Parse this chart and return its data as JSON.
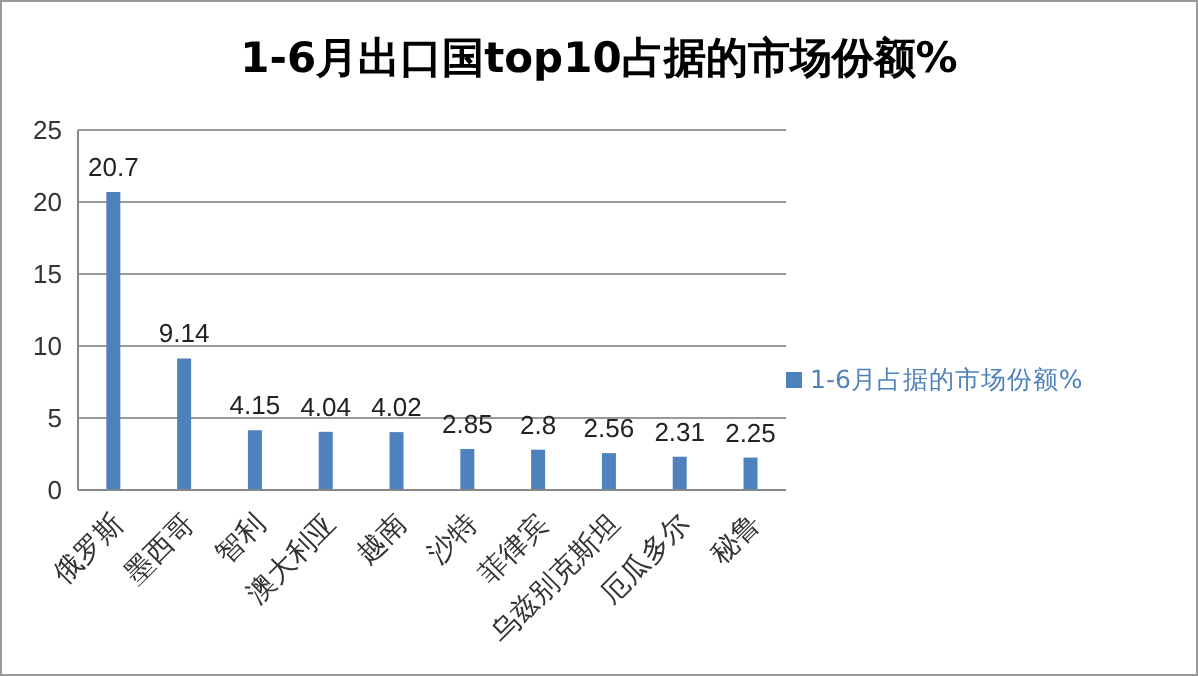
{
  "chart_data": {
    "type": "bar",
    "title": "1-6月出口国top10占据的市场份额%",
    "categories": [
      "俄罗斯",
      "墨西哥",
      "智利",
      "澳大利亚",
      "越南",
      "沙特",
      "菲律宾",
      "乌兹别克斯坦",
      "厄瓜多尔",
      "秘鲁"
    ],
    "series": [
      {
        "name": "1-6月占据的市场份额%",
        "color": "#4f81bd",
        "values": [
          20.7,
          9.14,
          4.15,
          4.04,
          4.02,
          2.85,
          2.8,
          2.56,
          2.31,
          2.25
        ]
      }
    ],
    "ylim": [
      0,
      25
    ],
    "yticks": [
      0,
      5,
      10,
      15,
      20,
      25
    ],
    "grid": "y",
    "legend": "right",
    "data_labels": true
  }
}
